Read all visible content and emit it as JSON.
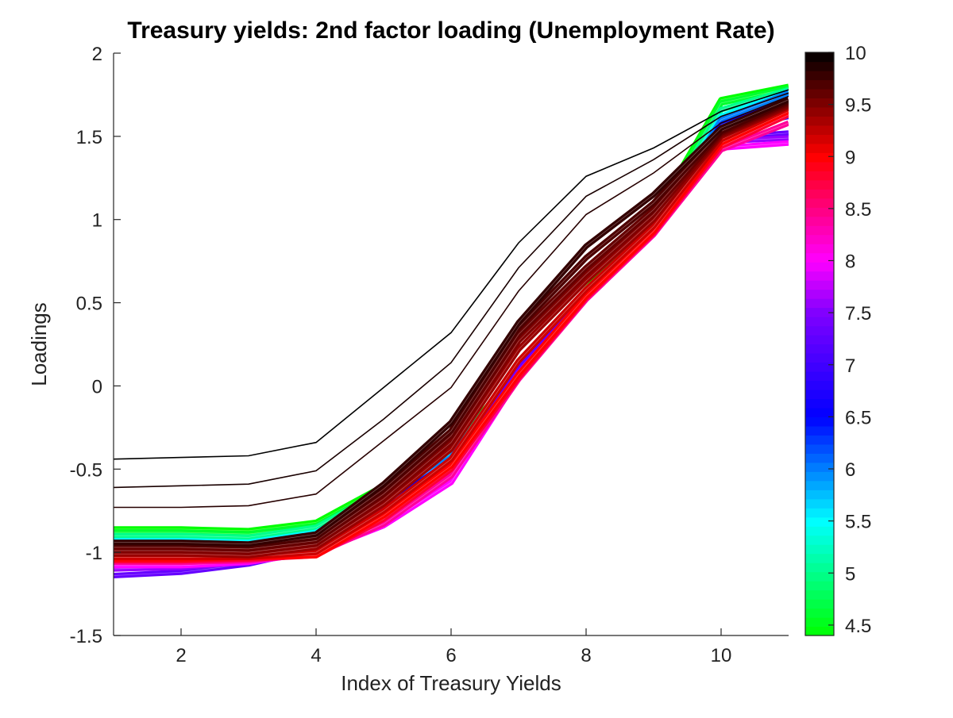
{
  "chart_data": {
    "type": "line",
    "title": "Treasury yields: 2nd factor loading (Unemployment Rate)",
    "xlabel": "Index of Treasury Yields",
    "ylabel": "Loadings",
    "xlim": [
      1,
      11
    ],
    "ylim": [
      -1.5,
      2
    ],
    "x_ticks": [
      2,
      4,
      6,
      8,
      10
    ],
    "y_ticks": [
      -1.5,
      -1,
      -0.5,
      0,
      0.5,
      1,
      1.5,
      2
    ],
    "y_tick_labels": [
      "-1.5",
      "-1",
      "-0.5",
      "0",
      "0.5",
      "1",
      "1.5",
      "2"
    ],
    "grid": false,
    "colorbar": {
      "label": "Unemployment Rate",
      "range": [
        4.4,
        10
      ],
      "ticks": [
        4.5,
        5,
        5.5,
        6,
        6.5,
        7,
        7.5,
        8,
        8.5,
        9,
        9.5,
        10
      ],
      "tick_labels": [
        "4.5",
        "5",
        "5.5",
        "6",
        "6.5",
        "7",
        "7.5",
        "8",
        "8.5",
        "9",
        "9.5",
        "10"
      ],
      "colormap_stops": [
        {
          "value": 4.4,
          "color": "#00ff00"
        },
        {
          "value": 5.5,
          "color": "#00ffff"
        },
        {
          "value": 6.5,
          "color": "#0000ff"
        },
        {
          "value": 7.5,
          "color": "#8000ff"
        },
        {
          "value": 8.0,
          "color": "#ff00ff"
        },
        {
          "value": 9.0,
          "color": "#ff0000"
        },
        {
          "value": 10.0,
          "color": "#000000"
        }
      ]
    },
    "x": [
      1,
      2,
      3,
      4,
      5,
      6,
      7,
      8,
      9,
      10,
      11
    ],
    "series": [
      {
        "rate": 4.4,
        "values": [
          -0.86,
          -0.86,
          -0.87,
          -0.82,
          -0.6,
          -0.38,
          0.1,
          0.58,
          1.02,
          1.72,
          1.8
        ]
      },
      {
        "rate": 4.6,
        "values": [
          -0.88,
          -0.88,
          -0.89,
          -0.84,
          -0.62,
          -0.39,
          0.1,
          0.57,
          1.0,
          1.7,
          1.79
        ]
      },
      {
        "rate": 5.0,
        "values": [
          -0.9,
          -0.9,
          -0.91,
          -0.85,
          -0.63,
          -0.4,
          0.11,
          0.56,
          0.98,
          1.66,
          1.78
        ]
      },
      {
        "rate": 5.5,
        "values": [
          -0.93,
          -0.93,
          -0.94,
          -0.88,
          -0.66,
          -0.42,
          0.11,
          0.55,
          0.96,
          1.62,
          1.77
        ]
      },
      {
        "rate": 6.0,
        "values": [
          -0.96,
          -0.96,
          -0.97,
          -0.9,
          -0.69,
          -0.43,
          0.12,
          0.55,
          0.95,
          1.6,
          1.76
        ]
      },
      {
        "rate": 6.5,
        "values": [
          -0.99,
          -0.99,
          -1.0,
          -0.93,
          -0.72,
          -0.45,
          0.12,
          0.54,
          0.94,
          1.57,
          1.72
        ]
      },
      {
        "rate": 7.0,
        "values": [
          -1.02,
          -1.02,
          -1.03,
          -0.96,
          -0.75,
          -0.47,
          0.11,
          0.54,
          0.93,
          1.53,
          1.62
        ]
      },
      {
        "rate": 7.3,
        "values": [
          -1.14,
          -1.12,
          -1.07,
          -0.98,
          -0.78,
          -0.5,
          0.1,
          0.54,
          0.93,
          1.49,
          1.52
        ]
      },
      {
        "rate": 7.6,
        "values": [
          -1.1,
          -1.09,
          -1.06,
          -0.99,
          -0.81,
          -0.53,
          0.08,
          0.53,
          0.92,
          1.47,
          1.49
        ]
      },
      {
        "rate": 8.0,
        "values": [
          -1.08,
          -1.08,
          -1.06,
          -1.0,
          -0.84,
          -0.58,
          0.05,
          0.52,
          0.91,
          1.43,
          1.46
        ]
      },
      {
        "rate": 8.4,
        "values": [
          -1.06,
          -1.06,
          -1.05,
          -1.01,
          -0.83,
          -0.54,
          0.04,
          0.52,
          0.91,
          1.42,
          1.58
        ]
      },
      {
        "rate": 8.8,
        "values": [
          -1.05,
          -1.05,
          -1.04,
          -1.02,
          -0.8,
          -0.5,
          0.05,
          0.53,
          0.92,
          1.44,
          1.63
        ]
      },
      {
        "rate": 9.0,
        "values": [
          -1.04,
          -1.04,
          -1.03,
          -1.02,
          -0.78,
          -0.48,
          0.07,
          0.54,
          0.93,
          1.46,
          1.65
        ]
      },
      {
        "rate": 9.2,
        "values": [
          -1.03,
          -1.03,
          -1.03,
          -1.0,
          -0.75,
          -0.44,
          0.15,
          0.58,
          0.96,
          1.48,
          1.67
        ]
      },
      {
        "rate": 9.4,
        "values": [
          -1.01,
          -1.01,
          -1.02,
          -0.97,
          -0.71,
          -0.38,
          0.22,
          0.63,
          1.0,
          1.5,
          1.68
        ]
      },
      {
        "rate": 9.5,
        "values": [
          -0.99,
          -0.99,
          -1.0,
          -0.95,
          -0.68,
          -0.34,
          0.27,
          0.67,
          1.03,
          1.51,
          1.69
        ]
      },
      {
        "rate": 9.6,
        "values": [
          -0.97,
          -0.97,
          -0.98,
          -0.93,
          -0.65,
          -0.3,
          0.31,
          0.71,
          1.06,
          1.52,
          1.7
        ]
      },
      {
        "rate": 9.7,
        "values": [
          -0.95,
          -0.95,
          -0.96,
          -0.91,
          -0.62,
          -0.27,
          0.35,
          0.77,
          1.1,
          1.53,
          1.71
        ]
      },
      {
        "rate": 9.8,
        "values": [
          -0.94,
          -0.94,
          -0.95,
          -0.89,
          -0.59,
          -0.22,
          0.38,
          0.84,
          1.15,
          1.55,
          1.72
        ]
      },
      {
        "rate": 9.85,
        "values": [
          -0.73,
          -0.73,
          -0.72,
          -0.65,
          -0.33,
          -0.01,
          0.57,
          1.03,
          1.28,
          1.58,
          1.74
        ]
      },
      {
        "rate": 9.9,
        "values": [
          -0.61,
          -0.6,
          -0.59,
          -0.51,
          -0.2,
          0.14,
          0.71,
          1.14,
          1.36,
          1.62,
          1.76
        ]
      },
      {
        "rate": 10.0,
        "values": [
          -0.44,
          -0.43,
          -0.42,
          -0.34,
          -0.01,
          0.32,
          0.86,
          1.26,
          1.43,
          1.65,
          1.78
        ]
      }
    ]
  }
}
